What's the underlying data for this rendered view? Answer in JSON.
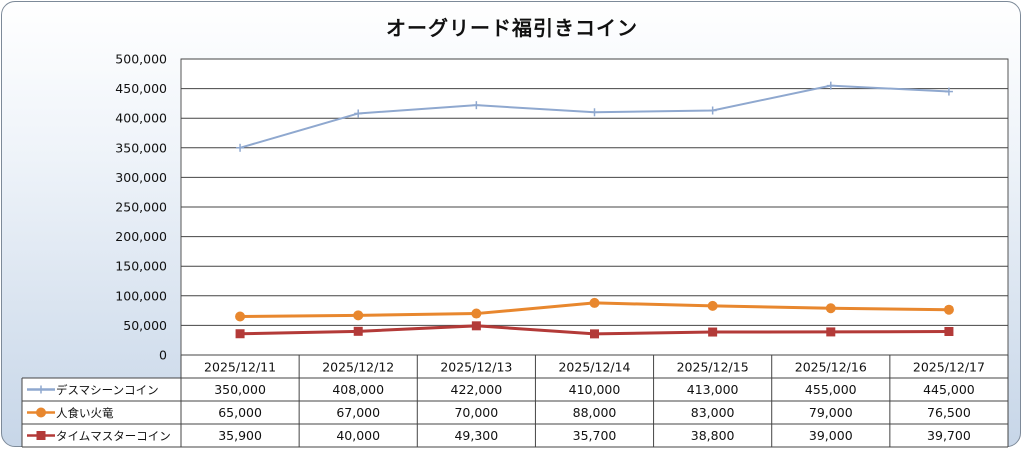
{
  "chart_data": {
    "type": "line",
    "title": "オーグリード福引きコイン",
    "categories": [
      "2025/12/11",
      "2025/12/12",
      "2025/12/13",
      "2025/12/14",
      "2025/12/15",
      "2025/12/16",
      "2025/12/17"
    ],
    "ylim": [
      0,
      500000
    ],
    "yticks": [
      "0",
      "50,000",
      "100,000",
      "150,000",
      "200,000",
      "250,000",
      "300,000",
      "350,000",
      "400,000",
      "450,000",
      "500,000"
    ],
    "grid": true,
    "legend": "data-table",
    "series": [
      {
        "name": "デスマシーンコイン",
        "color": "#8fa8cf",
        "marker": "plus",
        "values": [
          350000,
          408000,
          422000,
          410000,
          413000,
          455000,
          445000
        ],
        "labels": [
          "350,000",
          "408,000",
          "422,000",
          "410,000",
          "413,000",
          "455,000",
          "445,000"
        ]
      },
      {
        "name": "人食い火竜",
        "color": "#e8872e",
        "marker": "circle",
        "values": [
          65000,
          67000,
          70000,
          88000,
          83000,
          79000,
          76500
        ],
        "labels": [
          "65,000",
          "67,000",
          "70,000",
          "88,000",
          "83,000",
          "79,000",
          "76,500"
        ]
      },
      {
        "name": "タイムマスターコイン",
        "color": "#b33a38",
        "marker": "square",
        "values": [
          35900,
          40000,
          49300,
          35700,
          38800,
          39000,
          39700
        ],
        "labels": [
          "35,900",
          "40,000",
          "49,300",
          "35,700",
          "38,800",
          "39,000",
          "39,700"
        ]
      }
    ]
  }
}
